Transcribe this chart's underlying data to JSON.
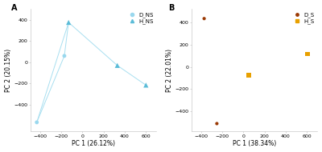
{
  "panel_A": {
    "D_NS": {
      "x": [
        -430,
        -170
      ],
      "y": [
        -565,
        60
      ],
      "color": "#9ad8ee",
      "marker": "o",
      "markersize": 3.5,
      "label": "D_NS",
      "zorder": 2
    },
    "H_NS": {
      "x": [
        -130,
        330,
        600
      ],
      "y": [
        375,
        -30,
        -215
      ],
      "color": "#5bbcd8",
      "marker": "^",
      "markersize": 4.5,
      "label": "H_NS",
      "zorder": 3
    },
    "line_color": "#a8dff0",
    "xlabel": "PC 1 (26.12%)",
    "ylabel": "PC 2 (20.15%)",
    "xlim": [
      -490,
      700
    ],
    "ylim": [
      -650,
      500
    ],
    "xticks": [
      -400,
      -200,
      0,
      200,
      400,
      600
    ],
    "yticks": [
      -400,
      -200,
      0,
      200,
      400
    ],
    "panel_label": "A"
  },
  "panel_B": {
    "D_S": {
      "x": [
        -370,
        -250
      ],
      "y": [
        435,
        -510
      ],
      "color": "#9B3A05",
      "marker": "o",
      "markersize": 3.0,
      "label": "D_S",
      "zorder": 3
    },
    "H_S": {
      "x": [
        50,
        605
      ],
      "y": [
        -75,
        115
      ],
      "color": "#E8A000",
      "marker": "s",
      "markersize": 4.0,
      "label": "H_S",
      "zorder": 2
    },
    "xlabel": "PC 1 (38.34%)",
    "ylabel": "PC 2 (22.01%)",
    "xlim": [
      -490,
      700
    ],
    "ylim": [
      -580,
      520
    ],
    "xticks": [
      -400,
      -200,
      0,
      200,
      400,
      600
    ],
    "yticks": [
      -400,
      -200,
      0,
      200,
      400
    ],
    "panel_label": "B"
  },
  "background_color": "#ffffff",
  "tick_fontsize": 4.5,
  "label_fontsize": 5.5,
  "legend_fontsize": 5.0
}
